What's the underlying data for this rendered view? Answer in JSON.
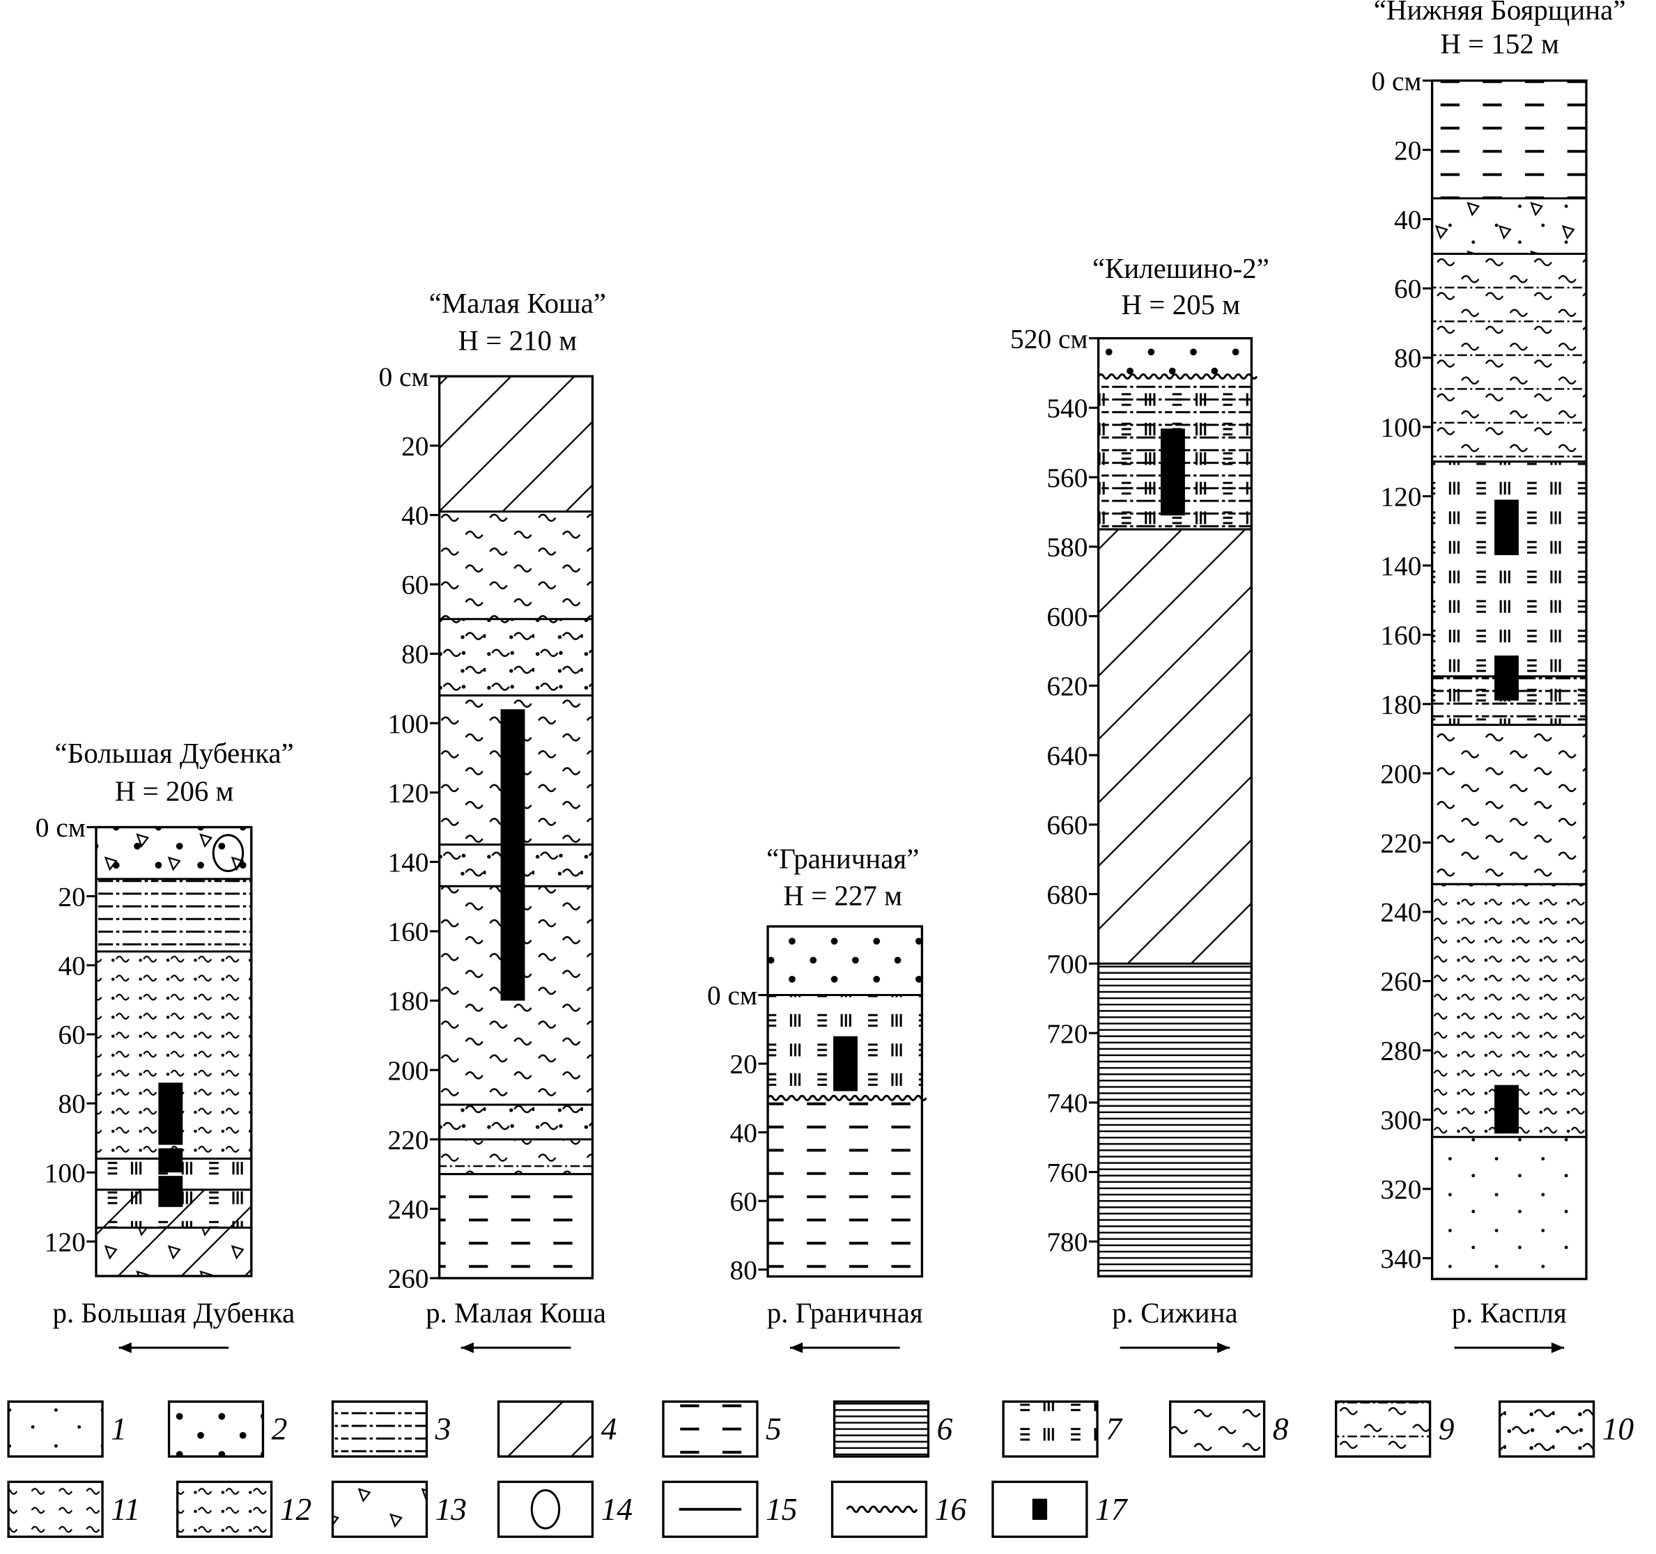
{
  "columns": [
    {
      "title": "“Большая Дубенка”",
      "elevation": "H = 206 м",
      "ticks": [
        "0 см",
        "20",
        "40",
        "60",
        "80",
        "100",
        "120"
      ],
      "tick_values": [
        0,
        20,
        40,
        60,
        80,
        100,
        120
      ],
      "depth_range": [
        0,
        130
      ],
      "river": "р. Большая Дубенка",
      "flow_direction": "left",
      "layers": [
        {
          "from": 0,
          "to": 15,
          "patterns": [
            2,
            13,
            14
          ]
        },
        {
          "from": 15,
          "to": 36,
          "patterns": [
            3
          ]
        },
        {
          "from": 36,
          "to": 96,
          "patterns": [
            12
          ]
        },
        {
          "from": 96,
          "to": 105,
          "patterns": [
            7
          ]
        },
        {
          "from": 105,
          "to": 116,
          "patterns": [
            4,
            7
          ]
        },
        {
          "from": 116,
          "to": 130,
          "patterns": [
            4,
            13
          ]
        }
      ],
      "samples": [
        {
          "from": 74,
          "to": 92
        },
        {
          "from": 93,
          "to": 100
        },
        {
          "from": 101,
          "to": 110
        }
      ]
    },
    {
      "title": "“Малая Коша”",
      "elevation": "H = 210 м",
      "ticks": [
        "0 см",
        "20",
        "40",
        "60",
        "80",
        "100",
        "120",
        "140",
        "160",
        "180",
        "200",
        "220",
        "240",
        "260"
      ],
      "tick_values": [
        0,
        20,
        40,
        60,
        80,
        100,
        120,
        140,
        160,
        180,
        200,
        220,
        240,
        260
      ],
      "depth_range": [
        0,
        260
      ],
      "river": "р. Малая Коша",
      "flow_direction": "left",
      "layers": [
        {
          "from": 0,
          "to": 39,
          "patterns": [
            4
          ]
        },
        {
          "from": 39,
          "to": 70,
          "patterns": [
            8
          ]
        },
        {
          "from": 70,
          "to": 92,
          "patterns": [
            10
          ]
        },
        {
          "from": 92,
          "to": 135,
          "patterns": [
            8
          ]
        },
        {
          "from": 135,
          "to": 147,
          "patterns": [
            10
          ]
        },
        {
          "from": 147,
          "to": 210,
          "patterns": [
            8
          ]
        },
        {
          "from": 210,
          "to": 220,
          "patterns": [
            10
          ]
        },
        {
          "from": 220,
          "to": 230,
          "patterns": [
            9
          ]
        },
        {
          "from": 230,
          "to": 260,
          "patterns": [
            5
          ]
        }
      ],
      "samples": [
        {
          "from": 96,
          "to": 180
        }
      ]
    },
    {
      "title": "“Граничная”",
      "elevation": "H = 227 м",
      "ticks": [
        "0 см",
        "20",
        "40",
        "60",
        "80"
      ],
      "tick_values": [
        0,
        20,
        40,
        60,
        80
      ],
      "depth_range": [
        -20,
        82
      ],
      "river": "р. Граничная",
      "flow_direction": "left",
      "layers": [
        {
          "from": -20,
          "to": 0,
          "patterns": [
            2
          ]
        },
        {
          "from": 0,
          "to": 30,
          "patterns": [
            7
          ]
        },
        {
          "from": 30,
          "to": 82,
          "patterns": [
            5
          ],
          "top_boundary": "wavy"
        }
      ],
      "samples": [
        {
          "from": 12,
          "to": 28
        }
      ]
    },
    {
      "title": "“Килешино-2”",
      "elevation": "H = 205 м",
      "ticks": [
        "520 см",
        "540",
        "560",
        "580",
        "600",
        "620",
        "640",
        "660",
        "680",
        "700",
        "720",
        "740",
        "760",
        "780"
      ],
      "tick_values": [
        520,
        540,
        560,
        580,
        600,
        620,
        640,
        660,
        680,
        700,
        720,
        740,
        760,
        780
      ],
      "depth_range": [
        520,
        790
      ],
      "river": "р. Сижина",
      "flow_direction": "right",
      "layers": [
        {
          "from": 520,
          "to": 531,
          "patterns": [
            2
          ]
        },
        {
          "from": 531,
          "to": 575,
          "patterns": [
            7,
            3
          ],
          "top_boundary": "wavy"
        },
        {
          "from": 575,
          "to": 700,
          "patterns": [
            4
          ]
        },
        {
          "from": 700,
          "to": 790,
          "patterns": [
            6
          ]
        }
      ],
      "samples": [
        {
          "from": 546,
          "to": 571
        }
      ]
    },
    {
      "title": "“Нижняя Боярщина”",
      "elevation": "H = 152 м",
      "ticks": [
        "0 см",
        "20",
        "40",
        "60",
        "80",
        "100",
        "120",
        "140",
        "160",
        "180",
        "200",
        "220",
        "240",
        "260",
        "280",
        "300",
        "320",
        "340"
      ],
      "tick_values": [
        0,
        20,
        40,
        60,
        80,
        100,
        120,
        140,
        160,
        180,
        200,
        220,
        240,
        260,
        280,
        300,
        320,
        340
      ],
      "depth_range": [
        0,
        346
      ],
      "river": "р. Каспля",
      "flow_direction": "right",
      "layers": [
        {
          "from": 0,
          "to": 34,
          "patterns": [
            5
          ]
        },
        {
          "from": 34,
          "to": 50,
          "patterns": [
            1,
            13
          ]
        },
        {
          "from": 50,
          "to": 110,
          "patterns": [
            9
          ]
        },
        {
          "from": 110,
          "to": 172,
          "patterns": [
            7
          ]
        },
        {
          "from": 172,
          "to": 186,
          "patterns": [
            7,
            3
          ]
        },
        {
          "from": 186,
          "to": 232,
          "patterns": [
            8
          ]
        },
        {
          "from": 232,
          "to": 305,
          "patterns": [
            12
          ]
        },
        {
          "from": 305,
          "to": 346,
          "patterns": [
            1
          ]
        }
      ],
      "samples": [
        {
          "from": 121,
          "to": 137
        },
        {
          "from": 166,
          "to": 179
        },
        {
          "from": 290,
          "to": 304
        }
      ]
    }
  ],
  "legend": [
    {
      "num": "1",
      "pattern": 1
    },
    {
      "num": "2",
      "pattern": 2
    },
    {
      "num": "3",
      "pattern": 3
    },
    {
      "num": "4",
      "pattern": 4
    },
    {
      "num": "5",
      "pattern": 5
    },
    {
      "num": "6",
      "pattern": 6
    },
    {
      "num": "7",
      "pattern": 7
    },
    {
      "num": "8",
      "pattern": 8
    },
    {
      "num": "9",
      "pattern": 9
    },
    {
      "num": "10",
      "pattern": 10
    },
    {
      "num": "11",
      "pattern": 11
    },
    {
      "num": "12",
      "pattern": 12
    },
    {
      "num": "13",
      "pattern": 13
    },
    {
      "num": "14",
      "symbol": "circle"
    },
    {
      "num": "15",
      "symbol": "line"
    },
    {
      "num": "16",
      "symbol": "wavy-line"
    },
    {
      "num": "17",
      "symbol": "sample-block"
    }
  ]
}
